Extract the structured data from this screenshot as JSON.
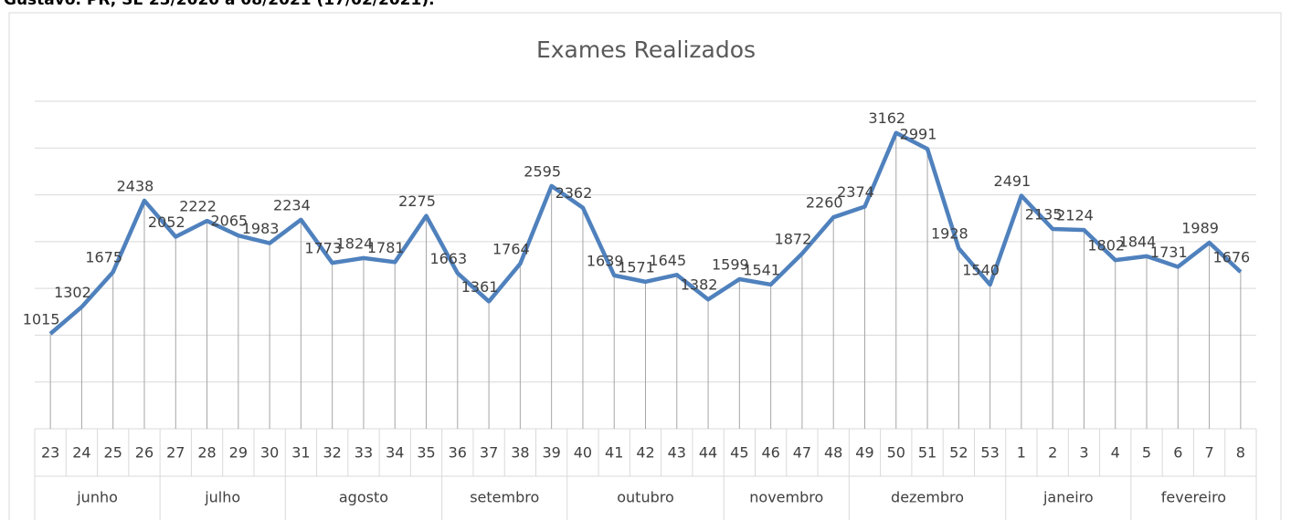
{
  "header": "Gustavo. PR, SE 23/2020 a 08/2021 (17/02/2021).",
  "chart_data": {
    "type": "line",
    "title": "Exames Realizados",
    "categories": [
      "23",
      "24",
      "25",
      "26",
      "27",
      "28",
      "29",
      "30",
      "31",
      "32",
      "33",
      "34",
      "35",
      "36",
      "37",
      "38",
      "39",
      "40",
      "41",
      "42",
      "43",
      "44",
      "45",
      "46",
      "47",
      "48",
      "49",
      "50",
      "51",
      "52",
      "53",
      "1",
      "2",
      "3",
      "4",
      "5",
      "6",
      "7",
      "8"
    ],
    "groups": [
      {
        "name": "junho",
        "span": 4
      },
      {
        "name": "julho",
        "span": 4
      },
      {
        "name": "agosto",
        "span": 5
      },
      {
        "name": "setembro",
        "span": 4
      },
      {
        "name": "outubro",
        "span": 5
      },
      {
        "name": "novembro",
        "span": 4
      },
      {
        "name": "dezembro",
        "span": 5
      },
      {
        "name": "janeiro",
        "span": 4
      },
      {
        "name": "fevereiro",
        "span": 4
      }
    ],
    "series": [
      {
        "color": "#4f81bd",
        "values": [
          1015,
          1302,
          1675,
          2438,
          2052,
          2222,
          2065,
          1983,
          2234,
          1773,
          1824,
          1781,
          2275,
          1663,
          1361,
          1764,
          2595,
          2362,
          1639,
          1571,
          1645,
          1382,
          1599,
          1541,
          1872,
          2260,
          2374,
          3162,
          2991,
          1928,
          1540,
          2491,
          2135,
          2124,
          1802,
          1844,
          1731,
          1989,
          1676
        ]
      }
    ],
    "ylim": [
      0,
      3500
    ],
    "yticks": [
      0,
      500,
      1000,
      1500,
      2000,
      2500,
      3000,
      3500
    ],
    "grid": true,
    "drop_lines": true
  }
}
